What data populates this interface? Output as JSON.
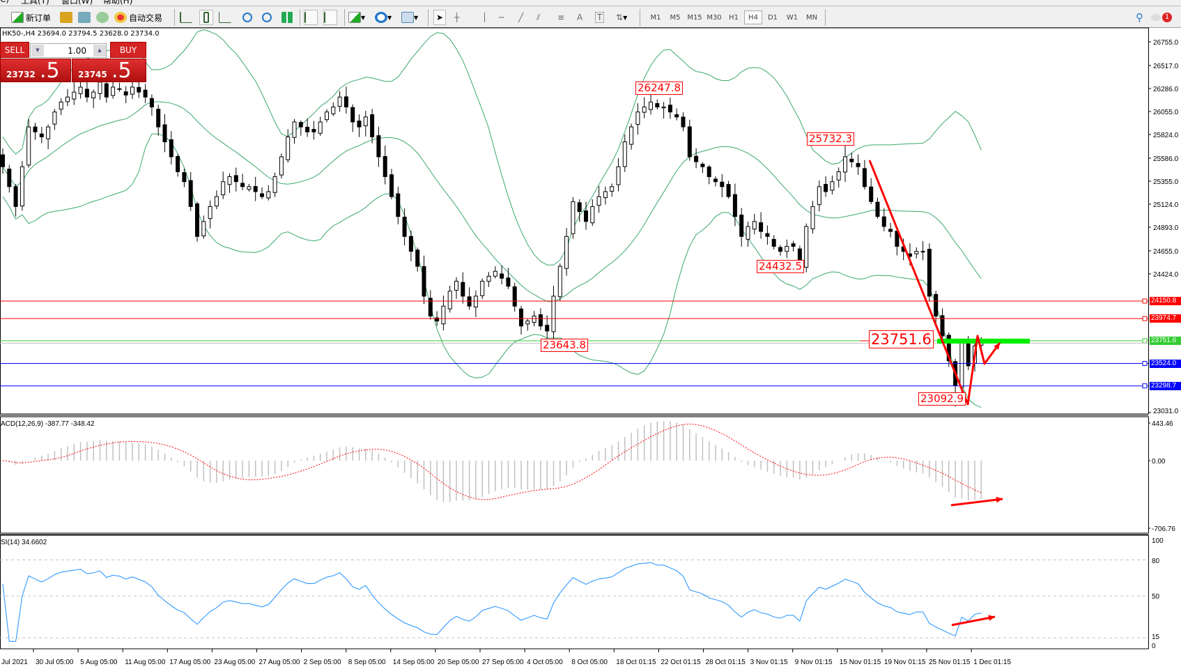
{
  "menu": [
    "C)",
    "工具(T)",
    "窗口(W)",
    "帮助(H)"
  ],
  "toolbar": {
    "new_order": "新订单",
    "auto_trading": "自动交易",
    "timeframes": [
      "M1",
      "M5",
      "M15",
      "M30",
      "H1",
      "H4",
      "D1",
      "W1",
      "MN"
    ],
    "active_timeframe": "H4",
    "notification_count": "1"
  },
  "chart_info": "HK50-,H4  23694.0 23794.5 23628.0 23734.0",
  "one_click": {
    "sell": "SELL",
    "buy": "BUY",
    "lot": "1.00",
    "bid_main": "23732",
    "bid_big": ".5",
    "ask_main": "23745",
    "ask_big": ".5"
  },
  "price_axis": [
    "26755.0",
    "26517.0",
    "26286.0",
    "26055.0",
    "25824.0",
    "25586.0",
    "25355.0",
    "25124.0",
    "24893.0",
    "24655.0",
    "24424.0",
    "23031.0"
  ],
  "price_lines": [
    {
      "value": "24150.8",
      "color": "#ff0000"
    },
    {
      "value": "23974.7",
      "color": "#ff0000"
    },
    {
      "value": "23751.6",
      "color": "#33cc33"
    },
    {
      "value": "23524.0",
      "color": "#0000ff"
    },
    {
      "value": "23298.7",
      "color": "#0000ff"
    }
  ],
  "annotations": [
    {
      "text": "26247.8",
      "index": 100,
      "kind": "high"
    },
    {
      "text": "25732.3",
      "index": 130,
      "kind": "high"
    },
    {
      "text": "24432.5",
      "index": 123,
      "kind": "low"
    },
    {
      "text": "23643.8",
      "index": 84,
      "kind": "low"
    },
    {
      "text": "23092.9",
      "index": 147,
      "kind": "low"
    },
    {
      "text": "23751.6",
      "kind": "level"
    }
  ],
  "macd": {
    "label": "ACD(12,26,9) -387.77 -348.42",
    "axis": [
      "443.46",
      "0.00",
      "-706.76"
    ],
    "range": [
      -706.76,
      443.46
    ]
  },
  "rsi": {
    "label": "SI(14) 34.6602",
    "axis": [
      "100",
      "80",
      "50",
      "15",
      "0"
    ],
    "levels": [
      80,
      50,
      15
    ]
  },
  "time_axis": [
    "Jul 2021",
    "30 Jul 05:00",
    "5 Aug 05:00",
    "11 Aug 05:00",
    "17 Aug 05:00",
    "23 Aug 05:00",
    "27 Aug 05:00",
    "2 Sep 05:00",
    "8 Sep 05:00",
    "14 Sep 05:00",
    "20 Sep 05:00",
    "27 Sep 05:00",
    "4 Oct 05:00",
    "8 Oct 05:00",
    "18 Oct 01:15",
    "22 Oct 01:15",
    "28 Oct 01:15",
    "3 Nov 01:15",
    "9 Nov 01:15",
    "15 Nov 01:15",
    "19 Nov 01:15",
    "25 Nov 01:15",
    "1 Dec 01:15"
  ],
  "chart_data": {
    "type": "candlestick",
    "symbol": "HK50-",
    "timeframe": "H4",
    "ylim": [
      23031.0,
      26755.0
    ],
    "indicators": [
      "Bollinger Bands",
      "MACD(12,26,9)",
      "RSI(14)"
    ],
    "closes": [
      25500,
      25300,
      25100,
      25500,
      25900,
      25850,
      25800,
      25900,
      26050,
      26150,
      26200,
      26250,
      26300,
      26200,
      26250,
      26350,
      26200,
      26300,
      26280,
      26220,
      26300,
      26250,
      26200,
      26100,
      25900,
      25750,
      25600,
      25450,
      25350,
      25100,
      24800,
      24950,
      25100,
      25200,
      25350,
      25400,
      25350,
      25300,
      25300,
      25250,
      25200,
      25250,
      25400,
      25600,
      25800,
      25950,
      25900,
      25850,
      25850,
      25950,
      26050,
      26100,
      26200,
      26100,
      25950,
      25900,
      26000,
      25800,
      25600,
      25400,
      25200,
      25000,
      24800,
      24650,
      24500,
      24200,
      24000,
      23950,
      24100,
      24250,
      24350,
      24200,
      24100,
      24200,
      24350,
      24400,
      24450,
      24380,
      24300,
      24100,
      23900,
      23950,
      24000,
      23900,
      23850,
      24200,
      24500,
      24800,
      25150,
      25050,
      24950,
      25100,
      25200,
      25250,
      25300,
      25500,
      25750,
      25900,
      26050,
      26100,
      26150,
      26100,
      26100,
      26050,
      26000,
      25900,
      25600,
      25550,
      25500,
      25400,
      25350,
      25300,
      25200,
      25000,
      24800,
      24900,
      24950,
      24850,
      24800,
      24700,
      24650,
      24700,
      24700,
      24500,
      24900,
      25100,
      25300,
      25250,
      25350,
      25450,
      25600,
      25550,
      25500,
      25300,
      25150,
      25000,
      24900,
      24850,
      24700,
      24650,
      24600,
      24650,
      24650,
      24200,
      24000,
      23800,
      23550,
      23300,
      23750,
      23500,
      23700,
      23734
    ]
  },
  "colors": {
    "bands": "#3aa86a",
    "macd_signal": "#ff0000",
    "macd_hist": "#c0c0c0",
    "rsi": "#1e90ff",
    "arrows": "#ff0000",
    "level_bar": "#00ee00"
  }
}
